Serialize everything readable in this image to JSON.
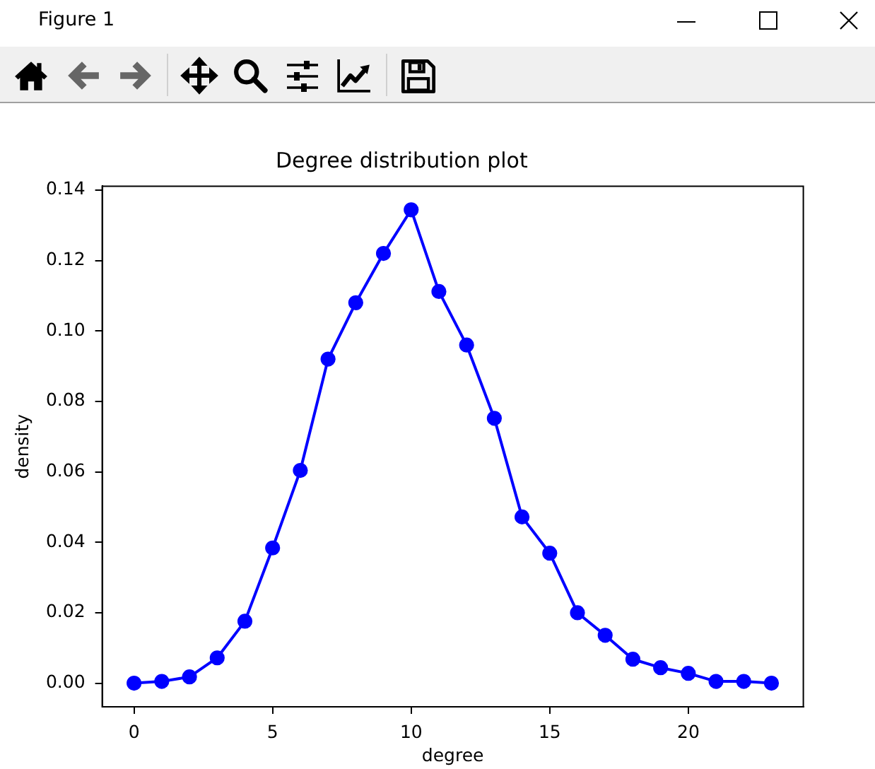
{
  "chart_data": {
    "type": "line",
    "title": "Degree distribution plot",
    "xlabel": "degree",
    "ylabel": "density",
    "annotations": [
      "Figure 1"
    ],
    "x": [
      0,
      1,
      2,
      3,
      4,
      5,
      6,
      7,
      8,
      9,
      10,
      11,
      12,
      13,
      14,
      15,
      16,
      17,
      18,
      19,
      20,
      21,
      22,
      23
    ],
    "series": [
      {
        "color": "#0000ff",
        "values": [
          0.0,
          0.0005,
          0.0018,
          0.0072,
          0.0176,
          0.0384,
          0.0604,
          0.092,
          0.108,
          0.122,
          0.1344,
          0.1112,
          0.096,
          0.0752,
          0.0472,
          0.0369,
          0.02,
          0.0136,
          0.0068,
          0.0044,
          0.0028,
          0.0005,
          0.0005,
          0.0
        ]
      }
    ],
    "xlim": [
      -1.15,
      24.15
    ],
    "ylim": [
      -0.0067,
      0.1411
    ],
    "xticks": [
      0,
      5,
      10,
      15,
      20
    ],
    "yticks": [
      {
        "value": 0,
        "label": "0.00"
      },
      {
        "value": 0.02,
        "label": "0.02"
      },
      {
        "value": 0.04,
        "label": "0.04"
      },
      {
        "value": 0.06,
        "label": "0.06"
      },
      {
        "value": 0.08,
        "label": "0.08"
      },
      {
        "value": 0.1,
        "label": "0.10"
      },
      {
        "value": 0.12,
        "label": "0.12"
      },
      {
        "value": 0.14,
        "label": "0.14"
      }
    ],
    "grid": false,
    "marker": "circle",
    "line_style": "solid"
  }
}
